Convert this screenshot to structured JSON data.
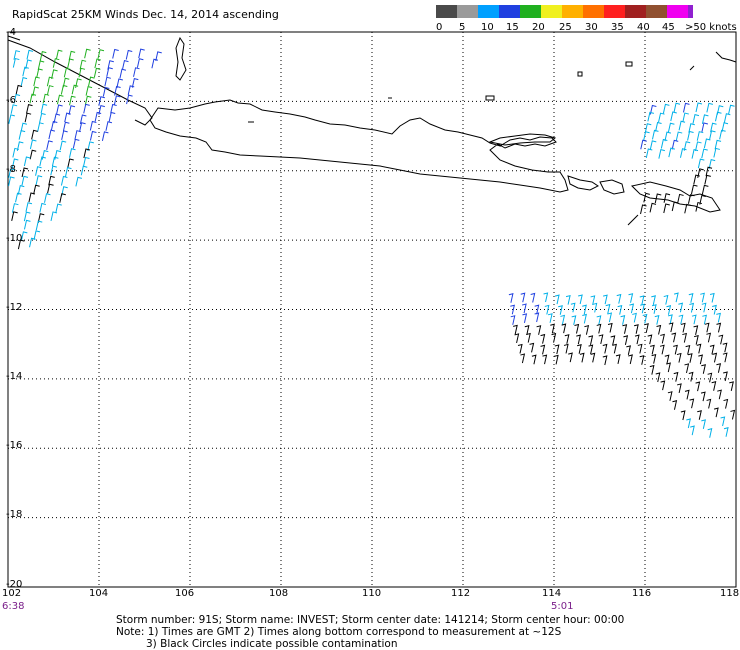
{
  "title": "RapidScat 25KM Winds Dec. 14, 2014 ascending",
  "colorbar": {
    "labels": [
      "0",
      "5",
      "10",
      "15",
      "20",
      "25",
      "30",
      "35",
      "40",
      "45",
      ">50 knots"
    ],
    "colors": [
      "#4a4a4a",
      "#9a9a9a",
      "#00a0ff",
      "#2040e0",
      "#20b020",
      "#f0f020",
      "#ffb000",
      "#ff7000",
      "#ff2020",
      "#a02020",
      "#905030",
      "#f000f0",
      "#9020d0",
      "#4010a0"
    ]
  },
  "axes": {
    "lon_ticks": [
      "102",
      "104",
      "106",
      "108",
      "110",
      "112",
      "114",
      "116",
      "118"
    ],
    "lat_ticks": [
      "-4",
      "-6",
      "-8",
      "-10",
      "-12",
      "-14",
      "-16",
      "-18",
      "-20"
    ],
    "lon_range": [
      102,
      118
    ],
    "lat_range": [
      -20,
      -4
    ]
  },
  "times": {
    "left": "6:38",
    "mid": "5:01"
  },
  "info": {
    "line1": "Storm number: 91S;  Storm name: INVEST;  Storm center date: 141214;  Storm center hour: 00:00",
    "line2": "Note: 1) Times are GMT  2) Times along bottom correspond to measurement at ~12S",
    "line3": "3) Black Circles indicate possible contamination"
  }
}
